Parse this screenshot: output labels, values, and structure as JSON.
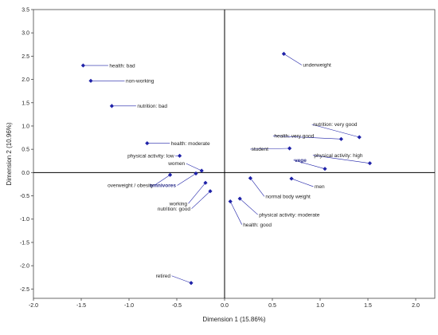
{
  "chart_data": {
    "type": "scatter",
    "xlabel": "Dimension 1 (15.86%)",
    "ylabel": "Dimension 2 (10.96%)",
    "xlim": [
      -2.0,
      2.2
    ],
    "ylim": [
      -2.7,
      3.5
    ],
    "x_ticks": [
      "-2.0",
      "-1.5",
      "-1.0",
      "-0.5",
      "0.0",
      "0.5",
      "1.0",
      "1.5",
      "2.0"
    ],
    "y_ticks": [
      "3.5",
      "3.0",
      "2.5",
      "2.0",
      "1.5",
      "1.0",
      "0.5",
      "0.0",
      "-0.5",
      "-1.0",
      "-1.5",
      "-2.0",
      "-2.5"
    ],
    "grid": false,
    "marker_color": "#1f22a8",
    "points": [
      {
        "label": "health: bad",
        "x": -1.48,
        "y": 2.3
      },
      {
        "label": "non-working",
        "x": -1.4,
        "y": 1.97
      },
      {
        "label": "nutrition: bad",
        "x": -1.18,
        "y": 1.43
      },
      {
        "label": "underweight",
        "x": 0.62,
        "y": 2.55
      },
      {
        "label": "nutrition: very good",
        "x": 1.41,
        "y": 0.76
      },
      {
        "label": "health: very good",
        "x": 1.22,
        "y": 0.72
      },
      {
        "label": "student",
        "x": 0.68,
        "y": 0.52
      },
      {
        "label": "physical activity: high",
        "x": 1.52,
        "y": 0.2
      },
      {
        "label": "vege",
        "x": 1.05,
        "y": 0.08,
        "bold": true
      },
      {
        "label": "men",
        "x": 0.7,
        "y": -0.13
      },
      {
        "label": "normal body weight",
        "x": 0.27,
        "y": -0.12
      },
      {
        "label": "physical activity: moderate",
        "x": 0.16,
        "y": -0.56
      },
      {
        "label": "health: good",
        "x": 0.06,
        "y": -0.62
      },
      {
        "label": "health: moderate",
        "x": -0.81,
        "y": 0.63
      },
      {
        "label": "physical activity: low",
        "x": -0.47,
        "y": 0.36
      },
      {
        "label": "women",
        "x": -0.24,
        "y": 0.04
      },
      {
        "label": "overweight / obesity",
        "x": -0.57,
        "y": -0.05
      },
      {
        "label": "omnivores",
        "x": -0.3,
        "y": -0.02,
        "bold": true
      },
      {
        "label": "working",
        "x": -0.2,
        "y": -0.22
      },
      {
        "label": "nutrition: good",
        "x": -0.15,
        "y": -0.4
      },
      {
        "label": "retired",
        "x": -0.35,
        "y": -2.37
      }
    ]
  }
}
